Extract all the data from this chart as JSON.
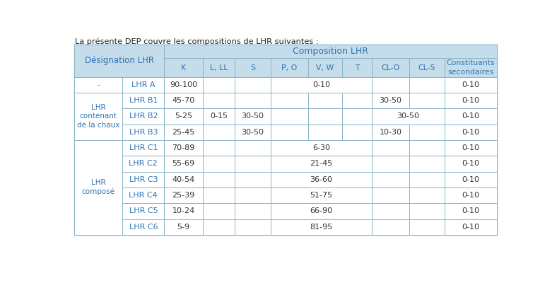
{
  "title": "La présente DEP couvre les compositions de LHR suivantes :",
  "header_bg": "#c5dcea",
  "border_color": "#8ab4c8",
  "blue_text": "#2e75b6",
  "dark_text": "#333333",
  "col_headers": [
    "K",
    "L, LL",
    "S",
    "P, O",
    "V, W",
    "T",
    "CL-O",
    "CL-S",
    "Constituants\nsecondaires"
  ],
  "row_groups": [
    {
      "label": "-",
      "span": 1
    },
    {
      "label": "LHR\ncontenant\nde la chaux",
      "span": 3
    },
    {
      "label": "LHR\ncomposé",
      "span": 6
    }
  ],
  "table_data": [
    [
      "LHR A",
      "90-100",
      "",
      "",
      "0-10",
      "",
      "",
      "",
      "",
      "0-10"
    ],
    [
      "LHR B1",
      "45-70",
      "",
      "",
      "",
      "",
      "",
      "30-50",
      "",
      "0-10"
    ],
    [
      "LHR B2",
      "5-25",
      "0-15",
      "30-50",
      "",
      "",
      "",
      "30-50_M",
      "",
      "0-10"
    ],
    [
      "LHR B3",
      "25-45",
      "",
      "30-50",
      "",
      "",
      "",
      "10-30",
      "",
      "0-10"
    ],
    [
      "LHR C1",
      "70-89",
      "",
      "",
      "6-30",
      "",
      "",
      "",
      "",
      "0-10"
    ],
    [
      "LHR C2",
      "55-69",
      "",
      "",
      "21-45",
      "",
      "",
      "",
      "",
      "0-10"
    ],
    [
      "LHR C3",
      "40-54",
      "",
      "",
      "36-60",
      "",
      "",
      "",
      "",
      "0-10"
    ],
    [
      "LHR C4",
      "25-39",
      "",
      "",
      "51-75",
      "",
      "",
      "",
      "",
      "0-10"
    ],
    [
      "LHR C5",
      "10-24",
      "",
      "",
      "66-90",
      "",
      "",
      "",
      "",
      "0-10"
    ],
    [
      "LHR C6",
      "5-9",
      "",
      "",
      "81-95",
      "",
      "",
      "",
      "",
      "0-10"
    ]
  ],
  "po_merge_rows": [
    0,
    4,
    5,
    6,
    7,
    8,
    9
  ],
  "clo_cls_merge_rows": [
    2
  ]
}
